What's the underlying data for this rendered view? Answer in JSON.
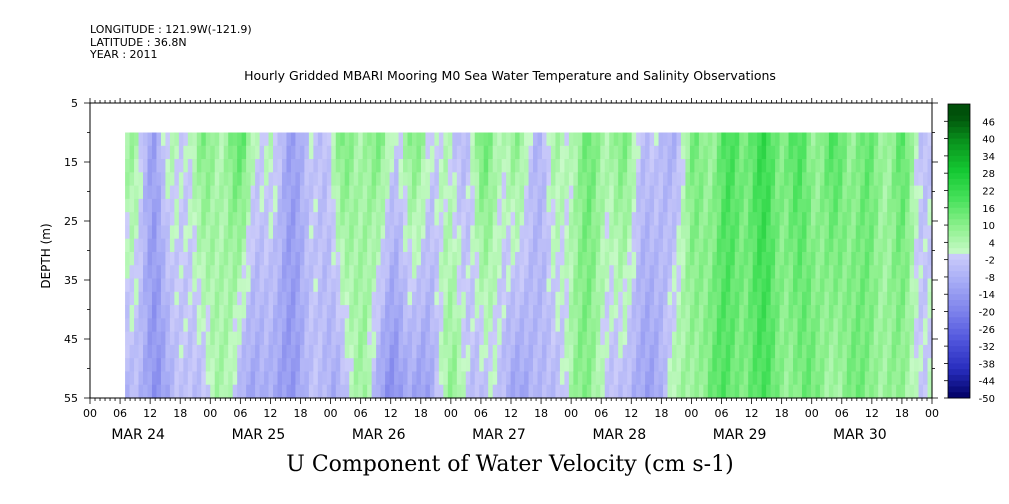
{
  "header": {
    "longitude": "LONGITUDE : 121.9W(-121.9)",
    "latitude": "LATITUDE : 36.8N",
    "year": "YEAR : 2011"
  },
  "chart_data": {
    "type": "heatmap",
    "title": "Hourly Gridded MBARI Mooring M0 Sea Water Temperature and Salinity Observations",
    "xlabel": "U Component of Water Velocity (cm s-1)",
    "ylabel": "DEPTH (m)",
    "ylim": [
      55,
      5
    ],
    "y_ticks": [
      5,
      15,
      25,
      35,
      45,
      55
    ],
    "x_hour_ticks": [
      "00",
      "06",
      "12",
      "18",
      "00",
      "06",
      "12",
      "18",
      "00",
      "06",
      "12",
      "18",
      "00",
      "06",
      "12",
      "18",
      "00",
      "06",
      "12",
      "18",
      "00",
      "06",
      "12",
      "18",
      "00",
      "06",
      "12",
      "18",
      "00"
    ],
    "x_day_labels": [
      "MAR 24",
      "MAR 25",
      "MAR 26",
      "MAR 27",
      "MAR 28",
      "MAR 29",
      "MAR 30"
    ],
    "data_depth_range": [
      10,
      55
    ],
    "data_start": "MAR 24 07",
    "colorbar": {
      "labels": [
        "46",
        "40",
        "34",
        "28",
        "22",
        "16",
        "10",
        "4",
        "-2",
        "-8",
        "-14",
        "-20",
        "-26",
        "-32",
        "-38",
        "-44",
        "-50"
      ]
    },
    "profile": {
      "note_free": true,
      "times": [
        "MAR 24 07",
        "MAR 24 12",
        "MAR 24 18",
        "MAR 25 00",
        "MAR 25 06",
        "MAR 25 12",
        "MAR 25 18",
        "MAR 26 00",
        "MAR 26 06",
        "MAR 26 12",
        "MAR 26 18",
        "MAR 27 00",
        "MAR 27 06",
        "MAR 27 12",
        "MAR 27 18",
        "MAR 28 00",
        "MAR 28 06",
        "MAR 28 12",
        "MAR 28 18",
        "MAR 29 00",
        "MAR 29 06",
        "MAR 29 12",
        "MAR 29 18",
        "MAR 30 00",
        "MAR 30 06",
        "MAR 30 12",
        "MAR 30 18",
        "MAR 31 00"
      ],
      "near_surface_u": [
        6,
        -8,
        4,
        8,
        12,
        -4,
        -10,
        6,
        10,
        4,
        8,
        -6,
        10,
        6,
        -4,
        8,
        10,
        6,
        -10,
        8,
        14,
        18,
        16,
        12,
        14,
        10,
        12,
        -4
      ],
      "near_bottom_u": [
        -8,
        -12,
        -6,
        4,
        -6,
        -14,
        -8,
        -6,
        4,
        -18,
        -10,
        6,
        -4,
        -8,
        -10,
        8,
        4,
        -12,
        -6,
        10,
        14,
        16,
        12,
        10,
        8,
        12,
        4,
        2
      ]
    }
  }
}
